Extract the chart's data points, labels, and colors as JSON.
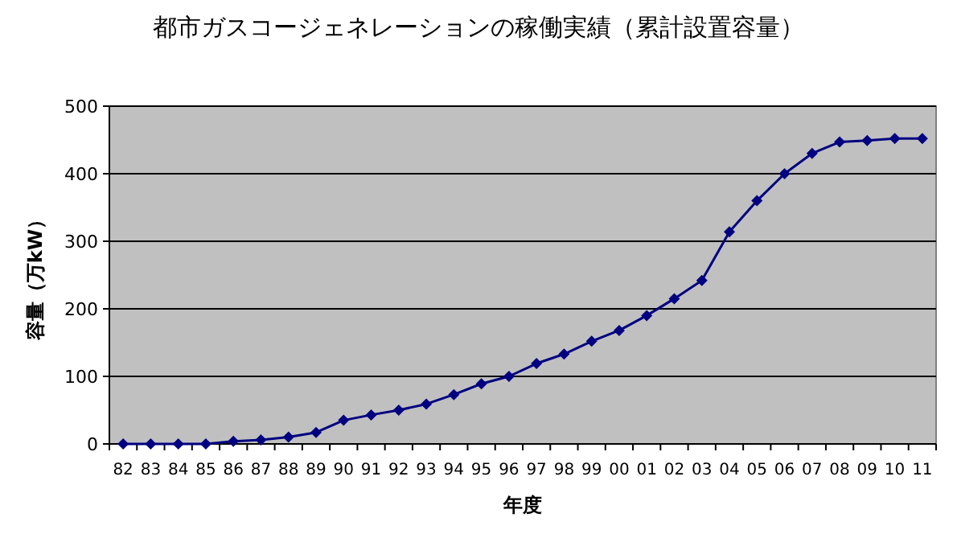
{
  "chart_data": {
    "type": "line",
    "title": "都市ガスコージェネレーションの稼働実績（累計設置容量）",
    "xlabel": "年度",
    "ylabel": "容量（万kW）",
    "categories": [
      "82",
      "83",
      "84",
      "85",
      "86",
      "87",
      "88",
      "89",
      "90",
      "91",
      "92",
      "93",
      "94",
      "95",
      "96",
      "97",
      "98",
      "99",
      "00",
      "01",
      "02",
      "03",
      "04",
      "05",
      "06",
      "07",
      "08",
      "09",
      "10",
      "11"
    ],
    "series": [
      {
        "color": "#000080",
        "values": [
          0,
          0,
          0,
          0,
          4,
          6,
          10,
          17,
          35,
          43,
          50,
          59,
          73,
          89,
          100,
          119,
          133,
          152,
          168,
          190,
          215,
          242,
          314,
          360,
          400,
          430,
          447,
          449,
          452,
          452
        ]
      }
    ],
    "ylim": [
      0,
      500
    ],
    "yticks": [
      0,
      100,
      200,
      300,
      400,
      500
    ],
    "grid": "y",
    "marker": "diamond",
    "line_style": "solid"
  }
}
